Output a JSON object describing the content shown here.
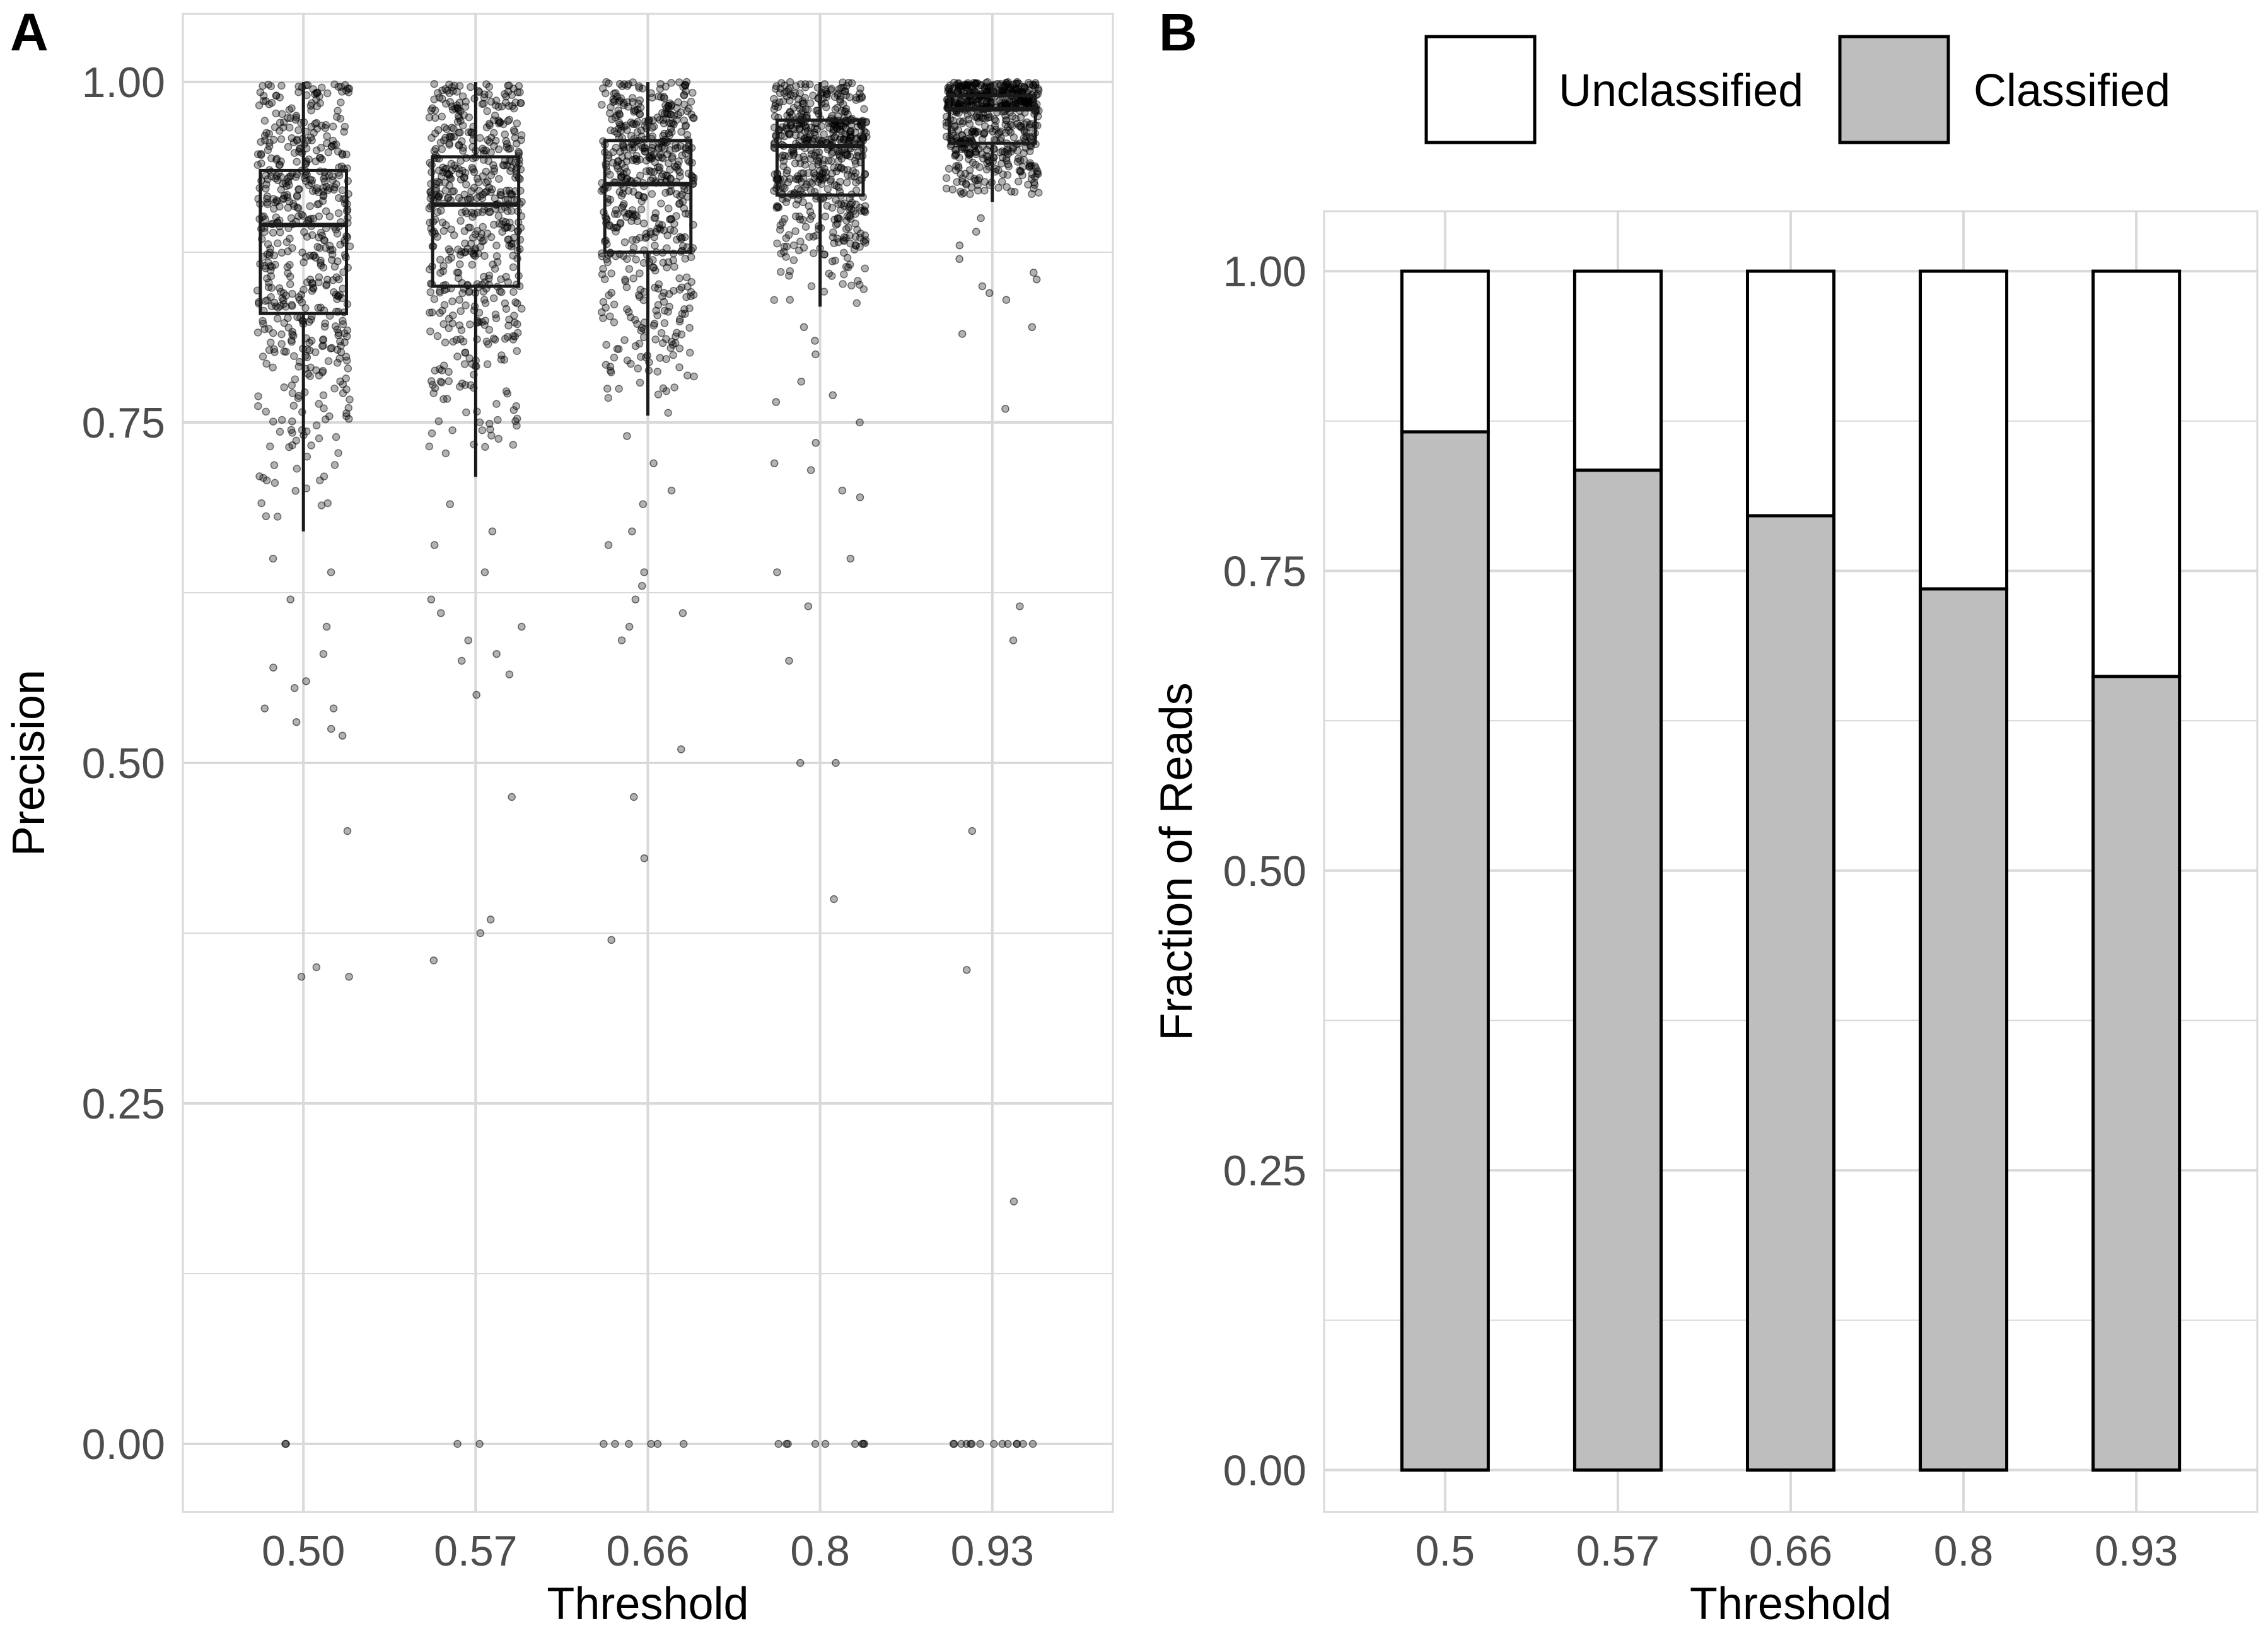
{
  "chart_data": [
    {
      "panel": "A",
      "type": "scatter",
      "subtype": "boxplot with jittered points",
      "xlabel": "Threshold",
      "ylabel": "Precision",
      "categories": [
        "0.50",
        "0.57",
        "0.66",
        "0.8",
        "0.93"
      ],
      "y_ticks": [
        "0.00",
        "0.25",
        "0.50",
        "0.75",
        "1.00"
      ],
      "ylim": [
        -0.05,
        1.05
      ],
      "grid": true,
      "boxes": [
        {
          "category": "0.50",
          "whisker_low": 0.67,
          "q1": 0.83,
          "median": 0.895,
          "q3": 0.935,
          "whisker_high": 1.0
        },
        {
          "category": "0.57",
          "whisker_low": 0.71,
          "q1": 0.85,
          "median": 0.91,
          "q3": 0.945,
          "whisker_high": 1.0
        },
        {
          "category": "0.66",
          "whisker_low": 0.755,
          "q1": 0.875,
          "median": 0.925,
          "q3": 0.957,
          "whisker_high": 1.0
        },
        {
          "category": "0.8",
          "whisker_low": 0.835,
          "q1": 0.917,
          "median": 0.953,
          "q3": 0.972,
          "whisker_high": 1.0
        },
        {
          "category": "0.93",
          "whisker_low": 0.912,
          "q1": 0.955,
          "median": 0.98,
          "q3": 0.99,
          "whisker_high": 1.0
        }
      ],
      "outliers": [
        {
          "category": "0.50",
          "values": [
            0.65,
            0.64,
            0.62,
            0.6,
            0.58,
            0.57,
            0.56,
            0.555,
            0.54,
            0.54,
            0.53,
            0.525,
            0.52,
            0.45,
            0.35,
            0.343,
            0.343,
            0.0,
            0.0
          ]
        },
        {
          "category": "0.57",
          "values": [
            0.69,
            0.67,
            0.66,
            0.64,
            0.62,
            0.61,
            0.6,
            0.59,
            0.58,
            0.575,
            0.565,
            0.55,
            0.475,
            0.385,
            0.375,
            0.355,
            0.0,
            0.0
          ]
        },
        {
          "category": "0.66",
          "values": [
            0.74,
            0.72,
            0.7,
            0.69,
            0.67,
            0.66,
            0.64,
            0.63,
            0.62,
            0.61,
            0.6,
            0.59,
            0.51,
            0.475,
            0.43,
            0.37,
            0.0,
            0.0,
            0.0,
            0.0,
            0.0,
            0.0
          ]
        },
        {
          "category": "0.8",
          "values": [
            0.82,
            0.81,
            0.8,
            0.78,
            0.77,
            0.765,
            0.75,
            0.735,
            0.72,
            0.715,
            0.7,
            0.695,
            0.65,
            0.64,
            0.615,
            0.575,
            0.5,
            0.5,
            0.4,
            0.0,
            0.0,
            0.0,
            0.0,
            0.0,
            0.0,
            0.0,
            0.0,
            0.0
          ]
        },
        {
          "category": "0.93",
          "values": [
            0.9,
            0.89,
            0.88,
            0.87,
            0.86,
            0.855,
            0.85,
            0.845,
            0.84,
            0.82,
            0.815,
            0.76,
            0.615,
            0.59,
            0.45,
            0.348,
            0.178,
            0.0,
            0.0,
            0.0,
            0.0,
            0.0,
            0.0,
            0.0,
            0.0,
            0.0,
            0.0,
            0.0,
            0.0,
            0.0,
            0.0
          ]
        }
      ]
    },
    {
      "panel": "B",
      "type": "bar",
      "stacked": true,
      "xlabel": "Threshold",
      "ylabel": "Fraction of Reads",
      "categories": [
        "0.5",
        "0.57",
        "0.66",
        "0.8",
        "0.93"
      ],
      "y_ticks": [
        "0.00",
        "0.25",
        "0.50",
        "0.75",
        "1.00"
      ],
      "ylim": [
        -0.035,
        1.05
      ],
      "grid": true,
      "legend_position": "top",
      "series": [
        {
          "name": "Classified",
          "values": [
            0.866,
            0.834,
            0.796,
            0.735,
            0.662
          ],
          "color": "#bebebe"
        },
        {
          "name": "Unclassified",
          "values": [
            0.134,
            0.166,
            0.204,
            0.265,
            0.338
          ],
          "color": "#ffffff"
        }
      ]
    }
  ],
  "legend": {
    "items": [
      {
        "name": "Unclassified",
        "color": "#ffffff"
      },
      {
        "name": "Classified",
        "color": "#bebebe"
      }
    ]
  },
  "colors": {
    "grid": "#d9d9d9",
    "box": "#1a1a1a",
    "point": "#000000",
    "tick_text": "#4d4d4d"
  }
}
